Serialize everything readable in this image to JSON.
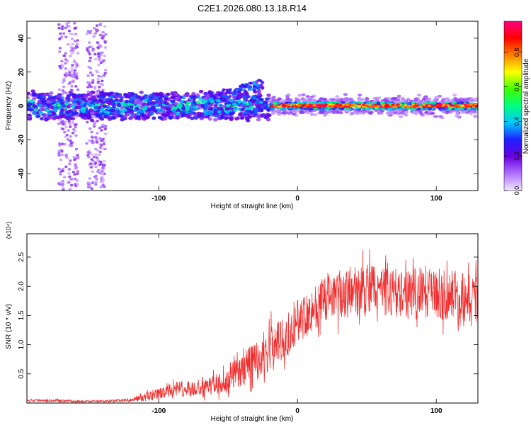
{
  "figure": {
    "title": "C2E1.2026.080.13.18.R14"
  },
  "chart_data": [
    {
      "type": "heatmap",
      "title": "C2E1.2026.080.13.18.R14",
      "xlabel": "Height of straight line (km)",
      "ylabel": "Frequency (Hz)",
      "xlim": [
        -195,
        130
      ],
      "ylim": [
        -50,
        50
      ],
      "xticks": [
        -100,
        0,
        100
      ],
      "yticks": [
        -40,
        -20,
        0,
        20,
        40
      ],
      "colorbar": {
        "label": "Normalized spectral amplitude",
        "range": [
          0.0,
          0.98
        ],
        "ticks": [
          0.0,
          0.2,
          0.4,
          0.6,
          0.8
        ],
        "tick_labels": [
          "0.0",
          "0.2",
          "0.4",
          "0.6",
          "0.8"
        ],
        "colormap": [
          "#f2e6ff",
          "#b070ff",
          "#6a00e0",
          "#2020ff",
          "#00c8ff",
          "#00ff80",
          "#40ff00",
          "#ffff00",
          "#ff8000",
          "#ff0000",
          "#ff0080"
        ]
      },
      "features": {
        "main_band_center_hz": 0,
        "broadband_columns_km": [
          -165,
          -145
        ],
        "drift_feature_km": [
          -65,
          -25
        ],
        "strong_signal_from_km": -20
      }
    },
    {
      "type": "line",
      "xlabel": "Height of straight line (km)",
      "ylabel": "SNR (10 * v/v)",
      "scale_label": "(x10⁴)",
      "xlim": [
        -195,
        130
      ],
      "ylim": [
        0,
        2.9
      ],
      "xticks": [
        -100,
        0,
        100
      ],
      "yticks": [
        0.5,
        1.0,
        1.5,
        2.0,
        2.5
      ],
      "ytick_labels": [
        "0.5",
        "1.0",
        "1.5",
        "2.0",
        "2.5"
      ],
      "series": [
        {
          "name": "SNR",
          "color": "#f03030",
          "x": [
            -195,
            -180,
            -160,
            -140,
            -120,
            -110,
            -100,
            -90,
            -80,
            -70,
            -60,
            -50,
            -40,
            -30,
            -20,
            -10,
            0,
            10,
            20,
            30,
            40,
            50,
            60,
            70,
            80,
            90,
            100,
            110,
            120,
            130
          ],
          "y": [
            0.04,
            0.05,
            0.03,
            0.03,
            0.05,
            0.1,
            0.15,
            0.22,
            0.25,
            0.22,
            0.3,
            0.4,
            0.55,
            0.75,
            0.95,
            1.1,
            1.4,
            1.6,
            1.75,
            1.85,
            1.9,
            1.95,
            1.95,
            1.9,
            1.85,
            1.9,
            1.9,
            1.85,
            1.8,
            1.8
          ],
          "noise_amplitude": [
            0.02,
            0.03,
            0.02,
            0.02,
            0.03,
            0.07,
            0.1,
            0.12,
            0.14,
            0.14,
            0.18,
            0.22,
            0.28,
            0.35,
            0.4,
            0.38,
            0.38,
            0.4,
            0.42,
            0.42,
            0.45,
            0.45,
            0.45,
            0.42,
            0.42,
            0.48,
            0.45,
            0.45,
            0.42,
            0.42
          ]
        }
      ]
    }
  ]
}
